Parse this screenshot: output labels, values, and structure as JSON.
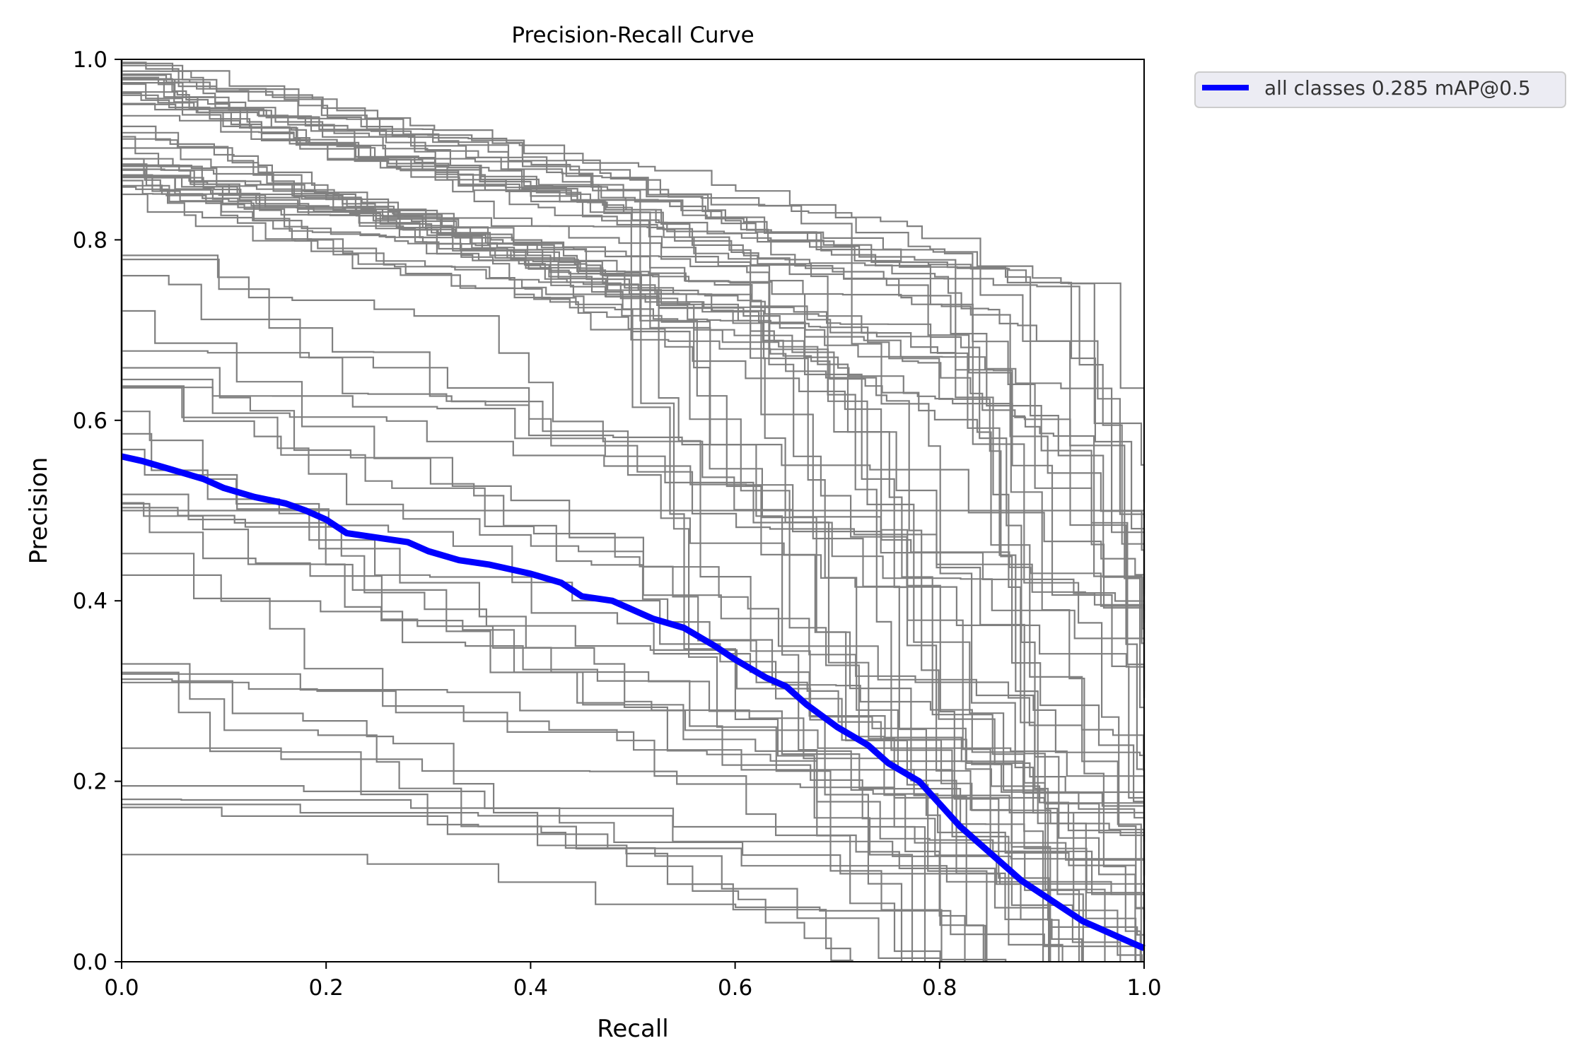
{
  "chart_data": {
    "type": "line",
    "title": "Precision-Recall Curve",
    "xlabel": "Recall",
    "ylabel": "Precision",
    "xlim": [
      0,
      1
    ],
    "ylim": [
      0,
      1
    ],
    "xticks": [
      "0.0",
      "0.2",
      "0.4",
      "0.6",
      "0.8",
      "1.0"
    ],
    "yticks": [
      "0.0",
      "0.2",
      "0.4",
      "0.6",
      "0.8",
      "1.0"
    ],
    "grid": false,
    "legend_position": "outside-top-right",
    "colors": {
      "class_curves": "#808080",
      "all_classes": "#0000ff"
    },
    "legend": [
      "all classes 0.285 mAP@0.5"
    ],
    "series": [
      {
        "name": "all classes 0.285 mAP@0.5",
        "x": [
          0.0,
          0.02,
          0.05,
          0.08,
          0.1,
          0.13,
          0.16,
          0.18,
          0.2,
          0.22,
          0.25,
          0.28,
          0.3,
          0.33,
          0.36,
          0.4,
          0.43,
          0.45,
          0.48,
          0.5,
          0.52,
          0.55,
          0.58,
          0.6,
          0.63,
          0.65,
          0.67,
          0.7,
          0.73,
          0.75,
          0.78,
          0.8,
          0.82,
          0.84,
          0.86,
          0.88,
          0.9,
          0.92,
          0.94,
          0.96,
          0.98,
          1.0
        ],
        "y": [
          0.56,
          0.555,
          0.545,
          0.535,
          0.525,
          0.515,
          0.508,
          0.5,
          0.49,
          0.475,
          0.47,
          0.465,
          0.455,
          0.445,
          0.44,
          0.43,
          0.42,
          0.405,
          0.4,
          0.39,
          0.38,
          0.37,
          0.35,
          0.335,
          0.315,
          0.305,
          0.285,
          0.26,
          0.24,
          0.22,
          0.2,
          0.175,
          0.15,
          0.13,
          0.11,
          0.09,
          0.075,
          0.06,
          0.045,
          0.035,
          0.025,
          0.015
        ]
      }
    ]
  }
}
